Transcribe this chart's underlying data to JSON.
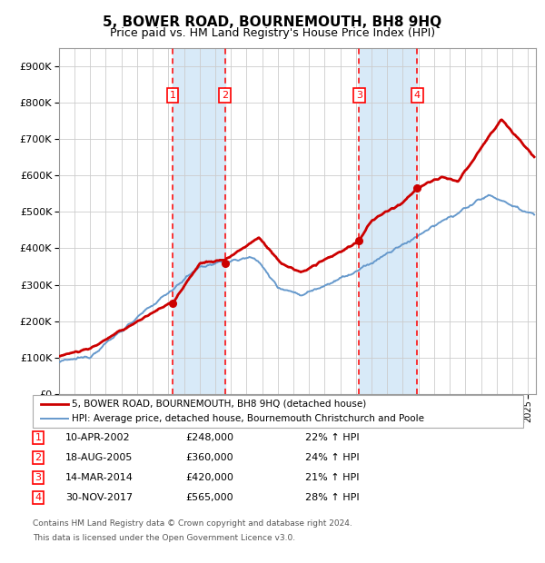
{
  "title": "5, BOWER ROAD, BOURNEMOUTH, BH8 9HQ",
  "subtitle": "Price paid vs. HM Land Registry's House Price Index (HPI)",
  "hpi_color": "#6699cc",
  "price_color": "#cc0000",
  "sale_color": "#cc0000",
  "background_color": "#ffffff",
  "grid_color": "#cccccc",
  "shade_color": "#d8eaf8",
  "ylim": [
    0,
    950000
  ],
  "yticks": [
    0,
    100000,
    200000,
    300000,
    400000,
    500000,
    600000,
    700000,
    800000,
    900000
  ],
  "sales": [
    {
      "num": 1,
      "date_label": "10-APR-2002",
      "date_x": 2002.27,
      "price": 248000,
      "pct": "22%",
      "dir": "↑"
    },
    {
      "num": 2,
      "date_label": "18-AUG-2005",
      "date_x": 2005.63,
      "price": 360000,
      "pct": "24%",
      "dir": "↑"
    },
    {
      "num": 3,
      "date_label": "14-MAR-2014",
      "date_x": 2014.2,
      "price": 420000,
      "pct": "21%",
      "dir": "↑"
    },
    {
      "num": 4,
      "date_label": "30-NOV-2017",
      "date_x": 2017.92,
      "price": 565000,
      "pct": "28%",
      "dir": "↑"
    }
  ],
  "legend_line1": "5, BOWER ROAD, BOURNEMOUTH, BH8 9HQ (detached house)",
  "legend_line2": "HPI: Average price, detached house, Bournemouth Christchurch and Poole",
  "footer1": "Contains HM Land Registry data © Crown copyright and database right 2024.",
  "footer2": "This data is licensed under the Open Government Licence v3.0.",
  "xmin": 1995.0,
  "xmax": 2025.5,
  "title_fontsize": 11,
  "subtitle_fontsize": 9
}
